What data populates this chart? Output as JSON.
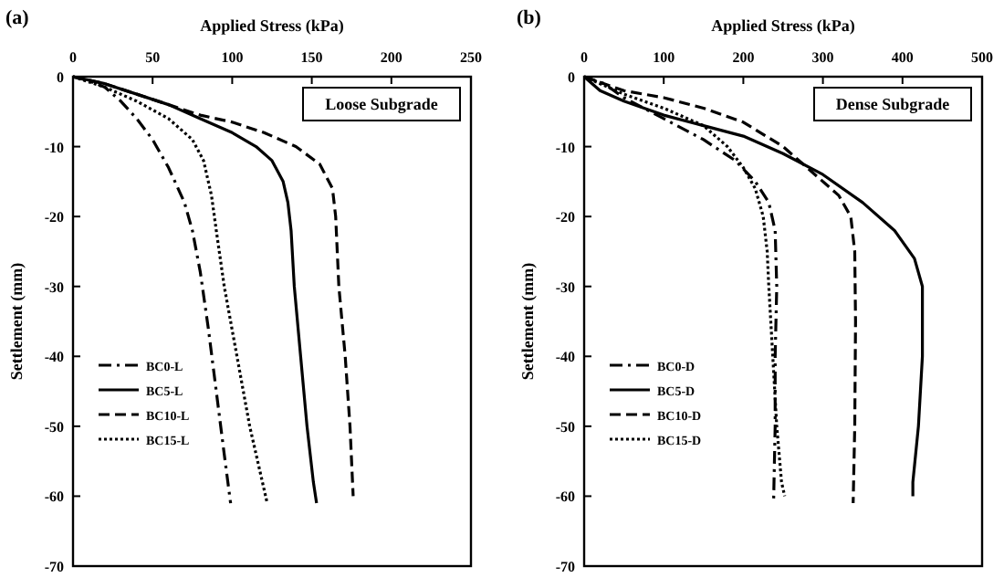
{
  "chart_data": [
    {
      "type": "line",
      "xlabel": "Applied Stress (kPa)",
      "ylabel": "Settlement (mm)",
      "annotations": [
        "(a)",
        "Loose Subgrade"
      ],
      "xlim": [
        0,
        250
      ],
      "xticks": [
        0,
        50,
        100,
        150,
        200,
        250
      ],
      "ylim": [
        -70,
        0
      ],
      "yticks": [
        -70,
        -60,
        -50,
        -40,
        -30,
        -20,
        -10,
        0
      ],
      "grid": false,
      "legend": "bottom left",
      "series": [
        {
          "name": "BC0-L",
          "color": "#000000",
          "line_style": "dashdot",
          "x": [
            0,
            10,
            20,
            30,
            40,
            50,
            60,
            70,
            75,
            80,
            85,
            90,
            95,
            99
          ],
          "values": [
            0,
            -0.6,
            -1.5,
            -3.5,
            -6,
            -9,
            -13,
            -18,
            -22,
            -28,
            -36,
            -45,
            -54,
            -61
          ]
        },
        {
          "name": "BC5-L",
          "color": "#000000",
          "line_style": "solid",
          "x": [
            0,
            20,
            40,
            60,
            80,
            100,
            115,
            125,
            132,
            135,
            137,
            139,
            143,
            147,
            151,
            153
          ],
          "values": [
            0,
            -1,
            -2.5,
            -4,
            -6,
            -8,
            -10,
            -12,
            -15,
            -18,
            -22,
            -30,
            -40,
            -50,
            -58,
            -61
          ]
        },
        {
          "name": "BC10-L",
          "color": "#000000",
          "line_style": "dashed",
          "x": [
            0,
            20,
            40,
            60,
            80,
            100,
            120,
            140,
            155,
            163,
            165,
            167,
            171,
            174,
            176
          ],
          "values": [
            0,
            -1,
            -2.5,
            -4,
            -5.5,
            -6.5,
            -8,
            -10,
            -12.5,
            -16,
            -20,
            -30,
            -40,
            -50,
            -60
          ]
        },
        {
          "name": "BC15-L",
          "color": "#000000",
          "line_style": "dotted",
          "x": [
            0,
            20,
            40,
            60,
            75,
            82,
            87,
            90,
            95,
            103,
            111,
            118,
            122
          ],
          "values": [
            0,
            -1.5,
            -3.5,
            -6,
            -9,
            -12,
            -17,
            -22,
            -30,
            -40,
            -50,
            -57,
            -61
          ]
        }
      ]
    },
    {
      "type": "line",
      "xlabel": "Applied Stress (kPa)",
      "ylabel": "Settlement (mm)",
      "annotations": [
        "(b)",
        "Dense Subgrade"
      ],
      "xlim": [
        0,
        500
      ],
      "xticks": [
        0,
        100,
        200,
        300,
        400,
        500
      ],
      "ylim": [
        -70,
        0
      ],
      "yticks": [
        -70,
        -60,
        -50,
        -40,
        -30,
        -20,
        -10,
        0
      ],
      "grid": false,
      "legend": "bottom left",
      "series": [
        {
          "name": "BC0-D",
          "color": "#000000",
          "line_style": "dashdot",
          "x": [
            0,
            25,
            50,
            100,
            150,
            190,
            215,
            232,
            240,
            242,
            240,
            240,
            238
          ],
          "values": [
            0,
            -1,
            -3,
            -6,
            -9,
            -12,
            -15,
            -18,
            -22,
            -30,
            -40,
            -50,
            -61
          ]
        },
        {
          "name": "BC5-D",
          "color": "#000000",
          "line_style": "solid",
          "x": [
            0,
            20,
            50,
            100,
            150,
            200,
            250,
            300,
            350,
            390,
            415,
            425,
            425,
            420,
            413,
            413
          ],
          "values": [
            0,
            -2,
            -3.5,
            -5.5,
            -7,
            -8.5,
            -11,
            -14,
            -18,
            -22,
            -26,
            -30,
            -40,
            -50,
            -58,
            -60
          ]
        },
        {
          "name": "BC10-D",
          "color": "#000000",
          "line_style": "dashed",
          "x": [
            0,
            50,
            100,
            150,
            200,
            250,
            290,
            320,
            335,
            340,
            341,
            340,
            338
          ],
          "values": [
            0,
            -2,
            -3,
            -4.5,
            -6.5,
            -10,
            -14,
            -17,
            -20,
            -25,
            -35,
            -50,
            -61
          ]
        },
        {
          "name": "BC15-D",
          "color": "#000000",
          "line_style": "dotted",
          "x": [
            0,
            50,
            100,
            150,
            180,
            200,
            215,
            225,
            230,
            232,
            237,
            242,
            248,
            252
          ],
          "values": [
            0,
            -2.5,
            -4.5,
            -7,
            -10,
            -13,
            -16,
            -20,
            -25,
            -30,
            -40,
            -50,
            -58,
            -60
          ]
        }
      ]
    }
  ]
}
